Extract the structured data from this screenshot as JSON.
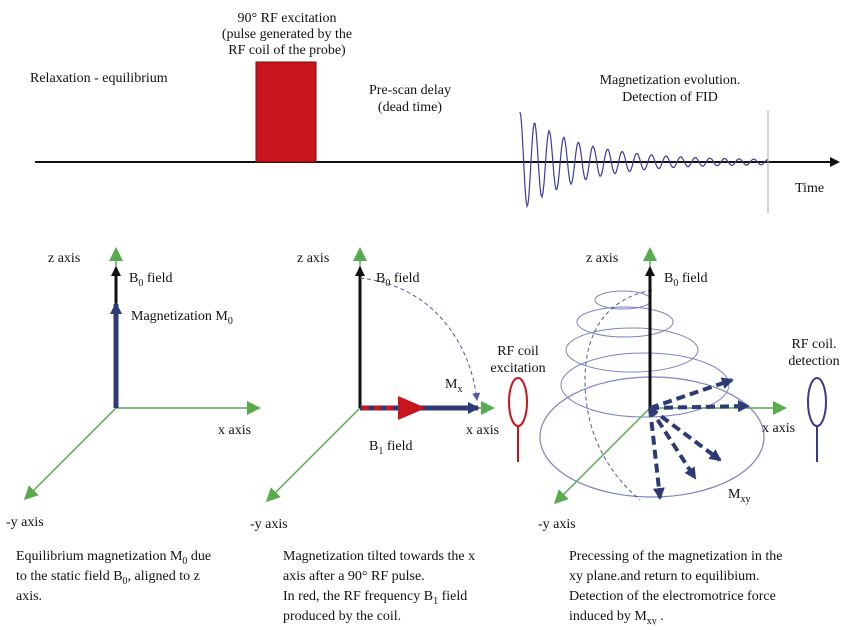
{
  "colors": {
    "axis_green": "#5aaa50",
    "vector_navy": "#2d3a78",
    "pulse_red": "#c8141c",
    "fid_blue": "#3c3ca0",
    "coil_blue": "#3a3a8c",
    "ellipse_blue": "#7a82c8"
  },
  "timeline": {
    "relaxation": "Relaxation  - equilibrium",
    "pulse_title_line1": "90° RF excitation",
    "pulse_title_line2": "(pulse generated by the",
    "pulse_title_line3": "RF coil  of the probe)",
    "prescan_line1": "Pre-scan delay",
    "prescan_line2": "(dead time)",
    "evolution_line1": "Magnetization evolution.",
    "evolution_line2": "Detection of FID",
    "time_label": "Time"
  },
  "panel1": {
    "z_axis": "z axis",
    "b0": "B",
    "b0_sub": "0",
    "b0_rest": " field",
    "magnetization": "Magnetization M",
    "magnetization_sub": "0",
    "x_axis": "x axis",
    "y_axis": "-y axis",
    "caption_line1": "Equilibrium magnetization M",
    "caption_line1_sub": "0",
    "caption_line1_rest": " due",
    "caption_line2": "to the static field B",
    "caption_line2_sub": "0",
    "caption_line2_rest": ", aligned to z",
    "caption_line3": "axis."
  },
  "panel2": {
    "z_axis": "z axis",
    "b0": "B",
    "b0_sub": "0",
    "b0_rest": " field",
    "mx": "M",
    "mx_sub": "x",
    "rf_coil_line1": "RF coil",
    "rf_coil_line2": "excitation",
    "x_axis": "x axis",
    "b1": "B",
    "b1_sub": "1",
    "b1_rest": " field",
    "y_axis": "-y axis",
    "caption_line1": "Magnetization tilted towards the x",
    "caption_line2": "axis after a 90° RF pulse.",
    "caption_line3": "In red, the RF frequency B",
    "caption_line3_sub": "1",
    "caption_line3_rest": " field",
    "caption_line4": "produced by the coil."
  },
  "panel3": {
    "z_axis": "z axis",
    "b0": "B",
    "b0_sub": "0",
    "b0_rest": " field",
    "rf_coil_line1": "RF coil.",
    "rf_coil_line2": "detection",
    "x_axis": "x axis",
    "mxy": "M",
    "mxy_sub": "xy",
    "y_axis": "-y axis",
    "caption_line1": "Precessing of the magnetization in the",
    "caption_line2": "xy plane.and return to equilibium.",
    "caption_line3": "Detection of the electromotrice force",
    "caption_line4": "induced by M",
    "caption_line4_sub": "xy",
    "caption_line4_rest": " ."
  }
}
